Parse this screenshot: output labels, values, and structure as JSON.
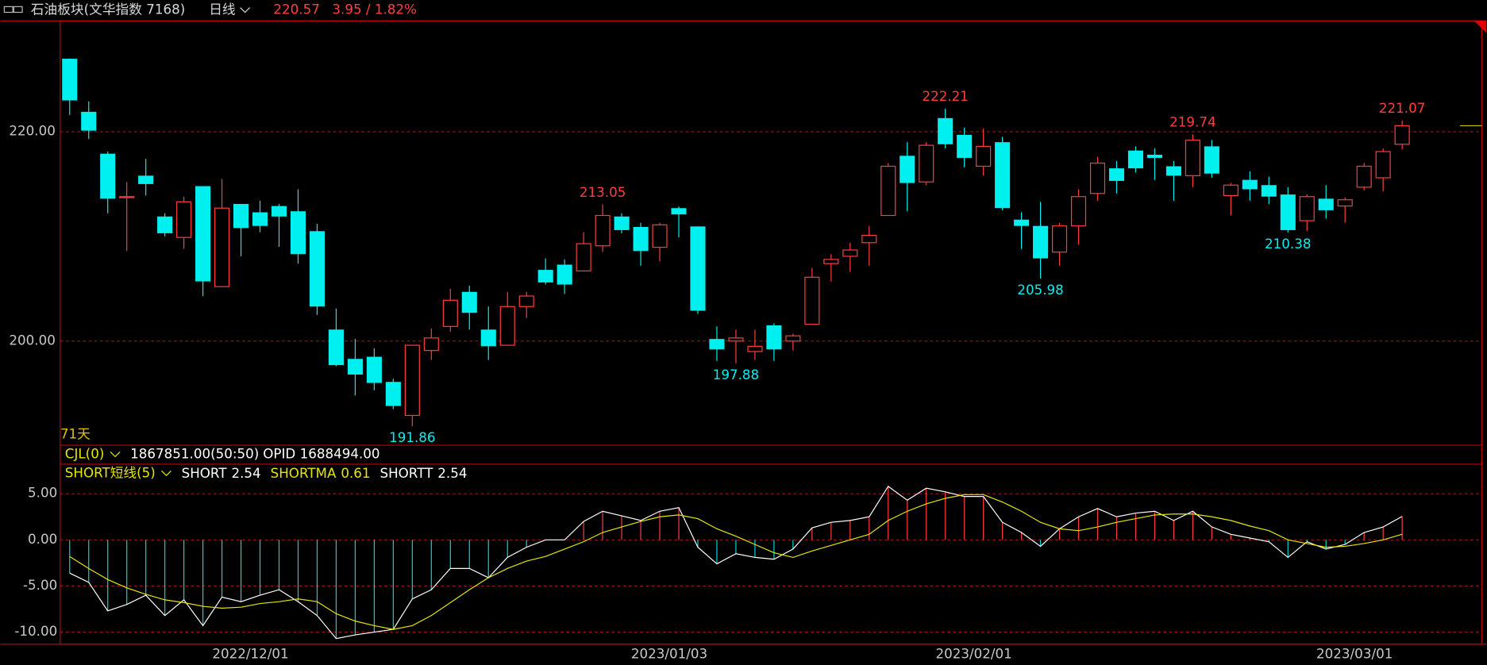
{
  "header": {
    "title": "石油板块(文华指数 7168)",
    "period": "日线",
    "change": "3.95 / 1.82%"
  },
  "volume_bar": {
    "name": "CJL(0)",
    "value": "1867851.00(50:50)",
    "opid": "OPID 1688494.00"
  },
  "chart_data": [
    {
      "type": "candlestick",
      "categories": [
        null,
        null,
        null,
        null,
        null,
        null,
        null,
        null,
        null,
        "2022/12/01",
        null,
        null,
        null,
        null,
        null,
        null,
        null,
        null,
        null,
        null,
        null,
        null,
        null,
        null,
        null,
        null,
        null,
        null,
        null,
        null,
        null,
        "2023/01/03",
        null,
        null,
        null,
        null,
        null,
        null,
        null,
        null,
        null,
        null,
        null,
        null,
        null,
        null,
        null,
        "2023/02/01",
        null,
        null,
        null,
        null,
        null,
        null,
        null,
        null,
        null,
        null,
        null,
        null,
        null,
        null,
        null,
        null,
        null,
        null,
        null,
        "2023/03/01",
        null,
        null,
        null
      ],
      "open": [
        226.97,
        221.9,
        217.9,
        213.7,
        215.8,
        211.9,
        209.9,
        214.8,
        205.2,
        213.1,
        212.3,
        212.9,
        212.4,
        210.5,
        201.1,
        198.3,
        198.5,
        196.1,
        192.9,
        199.1,
        201.4,
        204.7,
        201.1,
        199.6,
        203.3,
        206.8,
        207.3,
        206.7,
        209.1,
        211.9,
        210.9,
        208.96,
        212.7,
        210.95,
        200.2,
        200.0,
        199.0,
        201.5,
        200.0,
        201.6,
        207.4,
        208.1,
        209.4,
        212.0,
        217.7,
        215.2,
        221.3,
        219.7,
        216.7,
        219.0,
        211.6,
        211.0,
        208.5,
        211.0,
        214.1,
        216.5,
        218.2,
        217.8,
        216.7,
        215.8,
        218.6,
        213.9,
        215.4,
        214.9,
        214.0,
        211.5,
        213.6,
        212.9,
        214.7,
        215.6,
        218.8
      ],
      "high": [
        227.0,
        222.9,
        218.1,
        215.2,
        217.4,
        212.2,
        213.8,
        214.8,
        215.5,
        213.1,
        213.4,
        213.1,
        214.5,
        211.2,
        203.1,
        200.2,
        199.3,
        196.4,
        199.6,
        201.2,
        205.0,
        205.3,
        203.3,
        204.7,
        204.7,
        207.9,
        207.8,
        210.4,
        213.05,
        212.2,
        211.3,
        211.3,
        212.85,
        210.95,
        201.4,
        201.1,
        201.1,
        201.7,
        200.7,
        207.0,
        208.3,
        209.4,
        211.0,
        217.0,
        219.0,
        219.0,
        222.21,
        220.4,
        220.3,
        219.5,
        212.3,
        213.3,
        211.3,
        214.5,
        217.6,
        217.2,
        218.6,
        218.4,
        217.2,
        219.74,
        219.2,
        215.1,
        216.2,
        215.7,
        214.7,
        214.0,
        214.9,
        213.7,
        217.0,
        218.4,
        221.07
      ],
      "low": [
        221.6,
        219.3,
        212.2,
        208.6,
        213.9,
        210.0,
        208.8,
        204.3,
        205.2,
        208.1,
        210.4,
        209.0,
        207.4,
        202.5,
        197.6,
        194.8,
        195.3,
        193.5,
        191.86,
        198.2,
        200.9,
        201.1,
        198.2,
        199.6,
        202.2,
        205.4,
        204.5,
        206.7,
        208.5,
        210.3,
        207.2,
        207.6,
        209.9,
        202.6,
        198.1,
        197.88,
        198.2,
        198.1,
        199.1,
        201.6,
        205.7,
        206.6,
        207.2,
        212.0,
        212.4,
        214.9,
        218.4,
        216.6,
        215.8,
        212.5,
        208.8,
        205.98,
        207.2,
        209.2,
        213.4,
        214.1,
        216.1,
        215.4,
        213.4,
        214.7,
        215.6,
        212.0,
        213.4,
        213.1,
        210.38,
        210.5,
        211.7,
        211.3,
        214.4,
        214.3,
        218.3
      ],
      "close": [
        222.99,
        220.1,
        213.6,
        213.8,
        215.0,
        210.3,
        213.3,
        205.7,
        212.7,
        210.8,
        211.0,
        211.9,
        208.3,
        203.3,
        197.7,
        196.8,
        196.0,
        193.8,
        199.6,
        200.3,
        203.9,
        202.7,
        199.5,
        203.3,
        204.3,
        205.6,
        205.4,
        209.3,
        212.0,
        210.6,
        208.6,
        211.1,
        212.1,
        202.9,
        199.2,
        200.3,
        199.5,
        199.2,
        200.5,
        206.1,
        207.8,
        208.7,
        210.1,
        216.7,
        215.1,
        218.7,
        218.8,
        217.5,
        218.6,
        212.7,
        211.0,
        207.9,
        211.0,
        213.8,
        217.0,
        215.3,
        216.5,
        217.5,
        215.8,
        219.2,
        216.0,
        214.9,
        214.5,
        213.8,
        210.6,
        213.8,
        212.5,
        213.5,
        216.7,
        218.1,
        220.57
      ],
      "up_color": "#ff3d3d",
      "down_color": "#00f0f0",
      "ylim": [
        190.23,
        230.59
      ],
      "yticks": [
        {
          "value": 200,
          "label": "200.00"
        },
        {
          "value": 220,
          "label": "220.00"
        }
      ],
      "grid": true,
      "high_labels": [
        null,
        null,
        null,
        null,
        null,
        null,
        null,
        null,
        null,
        null,
        null,
        null,
        null,
        null,
        null,
        null,
        null,
        null,
        null,
        null,
        null,
        null,
        null,
        null,
        null,
        null,
        null,
        null,
        213.05,
        null,
        null,
        null,
        null,
        null,
        null,
        null,
        null,
        null,
        null,
        null,
        null,
        null,
        null,
        null,
        null,
        null,
        222.21,
        null,
        null,
        null,
        null,
        null,
        null,
        null,
        null,
        null,
        null,
        null,
        null,
        219.74,
        null,
        null,
        null,
        null,
        null,
        null,
        null,
        null,
        null,
        null,
        221.07
      ],
      "low_labels": [
        null,
        null,
        null,
        null,
        null,
        null,
        null,
        null,
        null,
        null,
        null,
        null,
        null,
        null,
        null,
        null,
        null,
        null,
        191.86,
        null,
        null,
        null,
        null,
        null,
        null,
        null,
        null,
        null,
        null,
        null,
        null,
        null,
        null,
        null,
        null,
        197.88,
        null,
        null,
        null,
        null,
        null,
        null,
        null,
        null,
        null,
        null,
        null,
        null,
        null,
        null,
        null,
        205.98,
        null,
        null,
        null,
        null,
        null,
        null,
        null,
        null,
        null,
        null,
        null,
        null,
        210.38,
        null,
        null,
        null,
        null,
        null,
        null
      ],
      "days_label": "71天"
    },
    {
      "type": "indicator",
      "title": "SHORT短线(5)",
      "series": [
        {
          "name": "SHORT",
          "type": "line",
          "color": "#ffffff",
          "values": [
            -3.6,
            -4.6,
            -7.7,
            -7.0,
            -6.0,
            -8.2,
            -6.5,
            -9.3,
            -6.2,
            -6.7,
            -6.0,
            -5.4,
            -6.7,
            -8.2,
            -10.7,
            -10.3,
            -10.0,
            -9.7,
            -6.4,
            -5.4,
            -3.1,
            -3.1,
            -4.1,
            -1.9,
            -0.8,
            0.0,
            0.0,
            2.0,
            3.1,
            2.6,
            2.1,
            3.1,
            3.5,
            -0.8,
            -2.6,
            -1.5,
            -1.9,
            -2.1,
            -1.0,
            1.3,
            1.9,
            2.1,
            2.5,
            5.8,
            4.3,
            5.6,
            5.2,
            4.7,
            4.7,
            1.9,
            0.8,
            -0.7,
            1.2,
            2.5,
            3.4,
            2.5,
            2.9,
            3.1,
            2.1,
            3.1,
            1.4,
            0.6,
            0.2,
            -0.2,
            -1.9,
            -0.2,
            -1.0,
            -0.5,
            0.8,
            1.4,
            2.54
          ]
        },
        {
          "name": "SHORTMA",
          "type": "line",
          "color": "#e6e600",
          "values": [
            -1.8,
            -3.1,
            -4.3,
            -5.2,
            -5.9,
            -6.5,
            -6.8,
            -7.2,
            -7.4,
            -7.3,
            -6.9,
            -6.7,
            -6.4,
            -6.7,
            -8.0,
            -8.8,
            -9.3,
            -9.7,
            -9.3,
            -8.2,
            -6.8,
            -5.4,
            -4.1,
            -3.1,
            -2.3,
            -1.8,
            -1.0,
            -0.2,
            0.8,
            1.4,
            2.0,
            2.5,
            2.7,
            2.3,
            1.2,
            0.4,
            -0.5,
            -1.4,
            -1.9,
            -1.2,
            -0.6,
            0.0,
            0.6,
            2.1,
            3.1,
            3.9,
            4.5,
            4.9,
            4.9,
            4.1,
            3.1,
            1.9,
            1.2,
            1.0,
            1.4,
            1.9,
            2.3,
            2.7,
            2.8,
            2.8,
            2.5,
            2.1,
            1.5,
            1.0,
            0.0,
            -0.4,
            -0.8,
            -0.7,
            -0.4,
            0.0,
            0.61
          ]
        },
        {
          "name": "SHORTT",
          "type": "bar",
          "color": "#ffffff",
          "up_color": "#ff3d3d",
          "down_color": "#00d8d8",
          "values": [
            -3.6,
            -4.6,
            -7.7,
            -7.0,
            -6.0,
            -8.2,
            -6.5,
            -9.3,
            -6.2,
            -6.7,
            -6.0,
            -5.4,
            -6.7,
            -8.2,
            -10.7,
            -10.3,
            -10.0,
            -9.7,
            -6.4,
            -5.4,
            -3.1,
            -3.1,
            -4.1,
            -1.9,
            -0.8,
            0.0,
            0.0,
            2.0,
            3.1,
            2.6,
            2.1,
            3.1,
            3.5,
            -0.8,
            -2.6,
            -1.5,
            -1.9,
            -2.1,
            -1.0,
            1.3,
            1.9,
            2.1,
            2.5,
            5.8,
            4.3,
            5.6,
            5.2,
            4.7,
            4.7,
            1.9,
            0.8,
            -0.7,
            1.2,
            2.5,
            3.4,
            2.5,
            2.9,
            3.1,
            2.1,
            3.1,
            1.4,
            0.6,
            0.2,
            -0.2,
            -1.9,
            -0.2,
            -1.0,
            -0.5,
            0.8,
            1.4,
            2.54
          ]
        }
      ],
      "ylim": [
        -11.2,
        8.1
      ],
      "yticks": [
        {
          "value": 5,
          "label": "5.00"
        },
        {
          "value": 0,
          "label": "0.00"
        },
        {
          "value": -5,
          "label": "-5.00"
        },
        {
          "value": -10,
          "label": "-10.00"
        }
      ],
      "grid": true
    }
  ]
}
